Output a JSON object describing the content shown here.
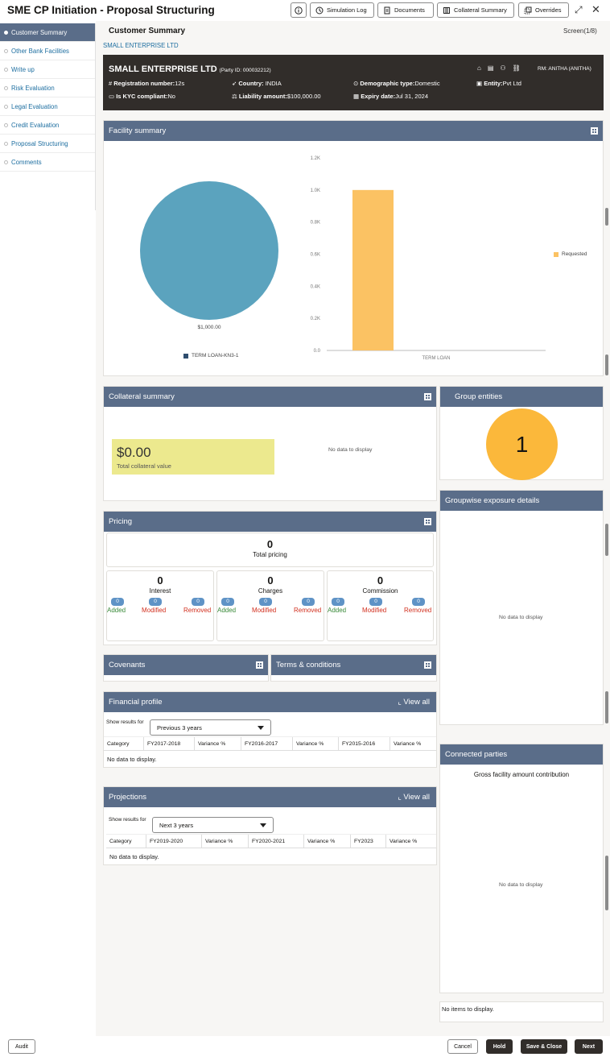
{
  "app_title": "SME CP Initiation - Proposal Structuring",
  "toolbar": {
    "info_label": "i",
    "simulation_log": "Simulation Log",
    "documents": "Documents",
    "collateral_summary": "Collateral Summary",
    "overrides": "Overrides"
  },
  "sidebar": {
    "items": [
      {
        "label": "Customer Summary"
      },
      {
        "label": "Other Bank Facilities"
      },
      {
        "label": "Write up"
      },
      {
        "label": "Risk Evaluation"
      },
      {
        "label": "Legal Evaluation"
      },
      {
        "label": "Credit Evaluation"
      },
      {
        "label": "Proposal Structuring"
      },
      {
        "label": "Comments"
      }
    ]
  },
  "page": {
    "title": "Customer Summary",
    "screen": "Screen(1/8)",
    "subtitle": "SMALL ENTERPRISE LTD"
  },
  "party": {
    "name": "SMALL ENTERPRISE LTD",
    "party_id": "(Party ID: 000032212)",
    "rm": "RM: ANITHA (ANITHA)",
    "reg_label": "Registration number:",
    "reg_value": "12s",
    "country_label": "Country:",
    "country_value": " INDIA",
    "demo_label": "Demographic type:",
    "demo_value": "Domestic",
    "entity_label": "Entity:",
    "entity_value": "Pvt Ltd",
    "kyc_label": "Is KYC compliant:",
    "kyc_value": "No",
    "liab_label": "Liability amount:",
    "liab_value": "$100,000.00",
    "expiry_label": "Expiry date:",
    "expiry_value": "Jul 31, 2024"
  },
  "facility": {
    "title": "Facility summary",
    "pie_label": "$1,000.00",
    "pie_legend": "TERM LOAN-KN3-1",
    "bar_legend": "Requested"
  },
  "chart_data": [
    {
      "type": "pie",
      "categories": [
        "TERM LOAN-KN3-1"
      ],
      "values": [
        1000
      ],
      "data_labels": [
        "$1,000.00"
      ],
      "legend": "bottom"
    },
    {
      "type": "bar",
      "categories": [
        "TERM LOAN"
      ],
      "series": [
        {
          "name": "Requested",
          "values": [
            1000
          ]
        }
      ],
      "yticks": [
        "0.0",
        "0.2K",
        "0.4K",
        "0.6K",
        "0.8K",
        "1.0K",
        "1.2K"
      ],
      "ylim": [
        0,
        1200
      ],
      "legend": "right",
      "colors": [
        "#fbc263"
      ]
    }
  ],
  "collateral": {
    "title": "Collateral summary",
    "value": "$0.00",
    "value_label": "Total collateral value",
    "nodata": "No data to display"
  },
  "group_entities": {
    "title": "Group entities",
    "count": "1"
  },
  "groupwise": {
    "title": "Groupwise exposure details",
    "nodata": "No data to display"
  },
  "pricing": {
    "title": "Pricing",
    "total": "0",
    "total_label": "Total pricing",
    "groups": [
      {
        "count": "0",
        "label": "Interest",
        "added": "0",
        "modified": "0",
        "removed": "0"
      },
      {
        "count": "0",
        "label": "Charges",
        "added": "0",
        "modified": "0",
        "removed": "0"
      },
      {
        "count": "0",
        "label": "Commission",
        "added": "0",
        "modified": "0",
        "removed": "0"
      }
    ],
    "added_label": "Added",
    "modified_label": "Modified",
    "removed_label": "Removed"
  },
  "covenants": {
    "title": "Covenants"
  },
  "terms": {
    "title": "Terms & conditions"
  },
  "financial": {
    "title": "Financial profile",
    "view_all": "View all",
    "show_label": "Show results for",
    "select_value": "Previous 3 years",
    "columns": [
      "Category",
      "FY2017-2018",
      "Variance %",
      "FY2016-2017",
      "Variance %",
      "FY2015-2016",
      "Variance %"
    ],
    "nodata": "No data to display."
  },
  "projections": {
    "title": "Projections",
    "view_all": "View all",
    "show_label": "Show results for",
    "select_value": "Next 3 years",
    "columns": [
      "Category",
      "FY2019-2020",
      "Variance %",
      "FY2020-2021",
      "Variance %",
      "FY2023",
      "Variance %"
    ],
    "nodata": "No data to display."
  },
  "connected": {
    "title": "Connected parties",
    "subtitle": "Gross facility amount contribution",
    "nodata": "No data to display",
    "no_items": "No items to display."
  },
  "footer": {
    "audit": "Audit",
    "cancel": "Cancel",
    "hold": "Hold",
    "save_close": "Save & Close",
    "next": "Next"
  }
}
